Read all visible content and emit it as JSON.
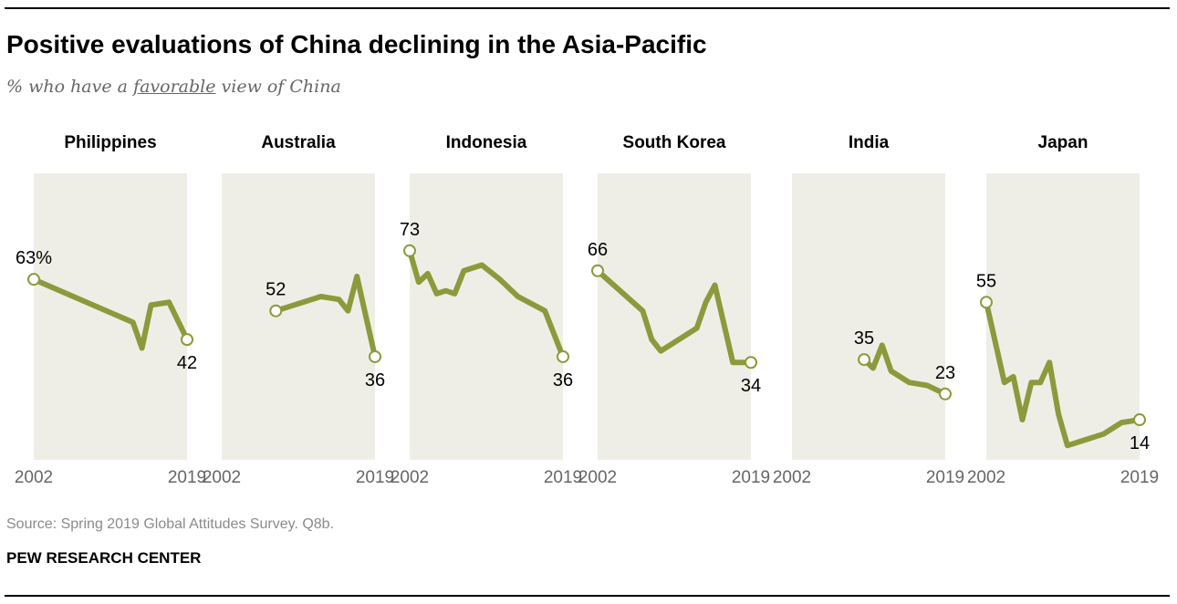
{
  "title": "Positive evaluations of China declining in the Asia-Pacific",
  "subtitle": {
    "prefix": "% who have a ",
    "emphasis": "favorable",
    "suffix": " view of China"
  },
  "source": "Source: Spring 2019 Global Attitudes Survey. Q8b.",
  "org": "PEW RESEARCH CENTER",
  "colors": {
    "line": "#8c9a3c",
    "panel": "#efeee6",
    "text": "#000000",
    "muted": "#666666"
  },
  "chart_data": [
    {
      "type": "line",
      "title": "Philippines",
      "x_ticks": [
        "2002",
        "2019"
      ],
      "ylim": [
        0,
        100
      ],
      "x": [
        2002,
        2013,
        2014,
        2015,
        2017,
        2019
      ],
      "values": [
        63,
        48,
        39,
        54,
        55,
        42
      ],
      "labels": [
        {
          "text": "63%",
          "index": 0,
          "pos": "above"
        },
        {
          "text": "42",
          "index": 5,
          "pos": "below"
        }
      ]
    },
    {
      "type": "line",
      "title": "Australia",
      "x_ticks": [
        "2002",
        "2019"
      ],
      "ylim": [
        0,
        100
      ],
      "x": [
        2008,
        2013,
        2015,
        2016,
        2017,
        2019
      ],
      "values": [
        52,
        57,
        56,
        52,
        64,
        36
      ],
      "labels": [
        {
          "text": "52",
          "index": 0,
          "pos": "above"
        },
        {
          "text": "36",
          "index": 5,
          "pos": "below"
        }
      ]
    },
    {
      "type": "line",
      "title": "Indonesia",
      "x_ticks": [
        "2002",
        "2019"
      ],
      "ylim": [
        0,
        100
      ],
      "x": [
        2002,
        2003,
        2004,
        2005,
        2006,
        2007,
        2008,
        2010,
        2012,
        2014,
        2017,
        2019
      ],
      "values": [
        73,
        62,
        65,
        58,
        59,
        58,
        66,
        68,
        63,
        57,
        52,
        36
      ],
      "labels": [
        {
          "text": "73",
          "index": 0,
          "pos": "above"
        },
        {
          "text": "36",
          "index": 11,
          "pos": "below"
        }
      ]
    },
    {
      "type": "line",
      "title": "South Korea",
      "x_ticks": [
        "2002",
        "2019"
      ],
      "ylim": [
        0,
        100
      ],
      "x": [
        2002,
        2007,
        2008,
        2009,
        2013,
        2014,
        2015,
        2017,
        2019
      ],
      "values": [
        66,
        52,
        42,
        38,
        46,
        55,
        61,
        34,
        34
      ],
      "labels": [
        {
          "text": "66",
          "index": 0,
          "pos": "above"
        },
        {
          "text": "34",
          "index": 8,
          "pos": "below"
        }
      ]
    },
    {
      "type": "line",
      "title": "India",
      "x_ticks": [
        "2002",
        "2019"
      ],
      "ylim": [
        0,
        100
      ],
      "x": [
        2010,
        2011,
        2012,
        2013,
        2015,
        2017,
        2019
      ],
      "values": [
        35,
        32,
        40,
        31,
        27,
        26,
        23
      ],
      "labels": [
        {
          "text": "35",
          "index": 0,
          "pos": "above"
        },
        {
          "text": "23",
          "index": 6,
          "pos": "above"
        }
      ]
    },
    {
      "type": "line",
      "title": "Japan",
      "x_ticks": [
        "2002",
        "2019"
      ],
      "ylim": [
        0,
        100
      ],
      "x": [
        2002,
        2004,
        2005,
        2006,
        2007,
        2008,
        2009,
        2010,
        2011,
        2013,
        2015,
        2017,
        2019
      ],
      "values": [
        55,
        27,
        29,
        14,
        27,
        27,
        34,
        16,
        5,
        7,
        9,
        13,
        14
      ],
      "labels": [
        {
          "text": "55",
          "index": 0,
          "pos": "above"
        },
        {
          "text": "14",
          "index": 12,
          "pos": "below"
        }
      ]
    }
  ]
}
